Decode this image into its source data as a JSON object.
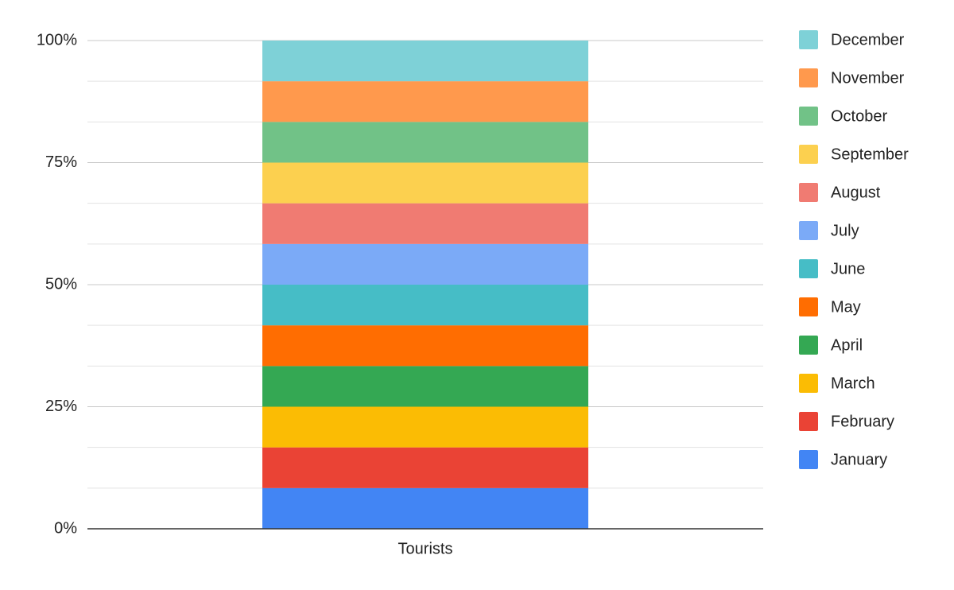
{
  "chart_data": {
    "type": "stacked_percent_bar",
    "categories": [
      "Tourists"
    ],
    "series": [
      {
        "name": "January",
        "color": "#4285f4",
        "values": [
          8.33
        ]
      },
      {
        "name": "February",
        "color": "#ea4335",
        "values": [
          8.33
        ]
      },
      {
        "name": "March",
        "color": "#fbbc04",
        "values": [
          8.33
        ]
      },
      {
        "name": "April",
        "color": "#34a853",
        "values": [
          8.33
        ]
      },
      {
        "name": "May",
        "color": "#ff6d01",
        "values": [
          8.33
        ]
      },
      {
        "name": "June",
        "color": "#46bdc6",
        "values": [
          8.33
        ]
      },
      {
        "name": "July",
        "color": "#7baaf7",
        "values": [
          8.33
        ]
      },
      {
        "name": "August",
        "color": "#f07b72",
        "values": [
          8.33
        ]
      },
      {
        "name": "September",
        "color": "#fcd04f",
        "values": [
          8.33
        ]
      },
      {
        "name": "October",
        "color": "#71c287",
        "values": [
          8.33
        ]
      },
      {
        "name": "November",
        "color": "#ff994d",
        "values": [
          8.33
        ]
      },
      {
        "name": "December",
        "color": "#7ed1d7",
        "values": [
          8.33
        ]
      }
    ],
    "ylim": [
      0,
      100
    ],
    "yticks": [
      {
        "value": 0,
        "label": "0%"
      },
      {
        "value": 25,
        "label": "25%"
      },
      {
        "value": 50,
        "label": "50%"
      },
      {
        "value": 75,
        "label": "75%"
      },
      {
        "value": 100,
        "label": "100%"
      }
    ],
    "minor_yticks": [
      8.33,
      16.67,
      33.33,
      41.67,
      58.33,
      66.67,
      83.33,
      91.67
    ],
    "grid": true,
    "legend": "right"
  }
}
